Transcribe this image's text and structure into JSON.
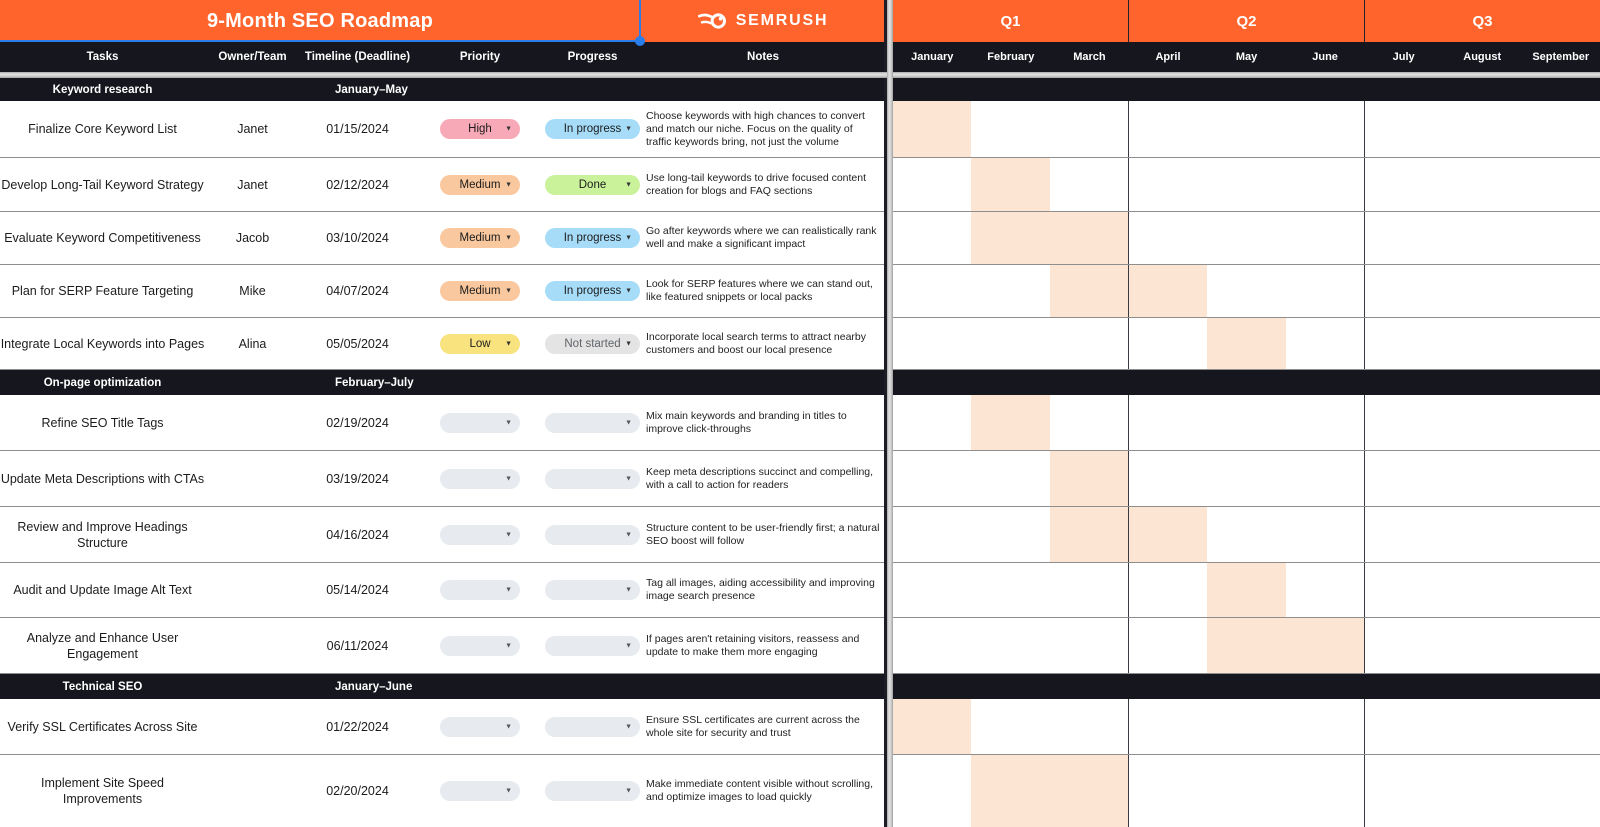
{
  "header": {
    "title": "9-Month SEO Roadmap",
    "brand": "SEMRUSH",
    "quarters": [
      "Q1",
      "Q2",
      "Q3"
    ],
    "months": [
      "January",
      "February",
      "March",
      "April",
      "May",
      "June",
      "July",
      "August",
      "September"
    ]
  },
  "columns": {
    "tasks": "Tasks",
    "owner": "Owner/Team",
    "timeline": "Timeline (Deadline)",
    "priority": "Priority",
    "progress": "Progress",
    "notes": "Notes"
  },
  "sections": [
    {
      "name": "Keyword research",
      "timeline": "January–May",
      "tasks": [
        {
          "task": "Finalize Core Keyword List",
          "owner": "Janet",
          "deadline": "01/15/2024",
          "priority": "High",
          "progress": "In progress",
          "notes": "Choose keywords with high chances to convert and match our niche. Focus on the quality of traffic keywords bring, not just the volume",
          "gantt_months": [
            "January"
          ]
        },
        {
          "task": "Develop Long-Tail Keyword Strategy",
          "owner": "Janet",
          "deadline": "02/12/2024",
          "priority": "Medium",
          "progress": "Done",
          "notes": "Use long-tail keywords to drive focused content creation for blogs and FAQ sections",
          "gantt_months": [
            "February"
          ]
        },
        {
          "task": "Evaluate Keyword Competitiveness",
          "owner": "Jacob",
          "deadline": "03/10/2024",
          "priority": "Medium",
          "progress": "In progress",
          "notes": "Go after keywords where we can realistically rank well and make a significant impact",
          "gantt_months": [
            "February",
            "March"
          ]
        },
        {
          "task": "Plan for SERP Feature Targeting",
          "owner": "Mike",
          "deadline": "04/07/2024",
          "priority": "Medium",
          "progress": "In progress",
          "notes": "Look for SERP features where we can stand out, like featured snippets or local packs",
          "gantt_months": [
            "March",
            "April"
          ]
        },
        {
          "task": "Integrate Local Keywords into Pages",
          "owner": "Alina",
          "deadline": "05/05/2024",
          "priority": "Low",
          "progress": "Not started",
          "notes": "Incorporate local search terms to attract nearby customers and boost our local presence",
          "gantt_months": [
            "May"
          ]
        }
      ]
    },
    {
      "name": "On-page optimization",
      "timeline": "February–July",
      "tasks": [
        {
          "task": "Refine SEO Title Tags",
          "owner": "",
          "deadline": "02/19/2024",
          "priority": "",
          "progress": "",
          "notes": "Mix main keywords and branding in titles to improve click-throughs",
          "gantt_months": [
            "February"
          ]
        },
        {
          "task": "Update Meta Descriptions with CTAs",
          "owner": "",
          "deadline": "03/19/2024",
          "priority": "",
          "progress": "",
          "notes": "Keep meta descriptions succinct and compelling, with a call to action for readers",
          "gantt_months": [
            "March"
          ]
        },
        {
          "task": "Review and Improve Headings Structure",
          "owner": "",
          "deadline": "04/16/2024",
          "priority": "",
          "progress": "",
          "notes": "Structure content to be user-friendly first; a natural SEO boost will follow",
          "gantt_months": [
            "March",
            "April"
          ]
        },
        {
          "task": "Audit and Update Image Alt Text",
          "owner": "",
          "deadline": "05/14/2024",
          "priority": "",
          "progress": "",
          "notes": "Tag all images, aiding accessibility and improving image search presence",
          "gantt_months": [
            "May"
          ]
        },
        {
          "task": "Analyze and Enhance User Engagement",
          "owner": "",
          "deadline": "06/11/2024",
          "priority": "",
          "progress": "",
          "notes": "If pages aren't retaining visitors, reassess and update to make them more engaging",
          "gantt_months": [
            "May",
            "June"
          ]
        }
      ]
    },
    {
      "name": "Technical SEO",
      "timeline": "January–June",
      "tasks": [
        {
          "task": "Verify SSL Certificates Across Site",
          "owner": "",
          "deadline": "01/22/2024",
          "priority": "",
          "progress": "",
          "notes": "Ensure SSL certificates are current across the whole site for security and trust",
          "gantt_months": [
            "January"
          ]
        },
        {
          "task": "Implement Site Speed Improvements",
          "owner": "",
          "deadline": "02/20/2024",
          "priority": "",
          "progress": "",
          "notes": "Make immediate content visible without scrolling, and optimize images to load quickly",
          "gantt_months": [
            "February",
            "March"
          ]
        }
      ]
    }
  ],
  "colors": {
    "brand_orange": "#FF642D",
    "header_dark": "#16161F",
    "gantt_fill": "#FCE5D2",
    "selection_blue": "#2B7DE9",
    "priority": {
      "High": "#F8A9B8",
      "Medium": "#FAC89E",
      "Low": "#F8E37E"
    },
    "progress": {
      "In progress": "#A6DCF8",
      "Done": "#C9F29B",
      "Not started": "#E4E4E4"
    },
    "empty_pill": "#E7EAEE"
  }
}
